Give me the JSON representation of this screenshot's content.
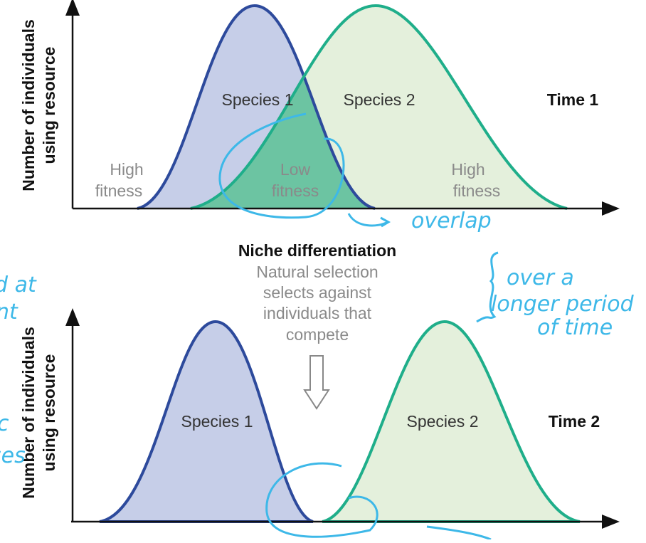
{
  "top_panel": {
    "y_axis_label": [
      "Number of individuals",
      "using resource"
    ],
    "species_1": "Species 1",
    "species_2": "Species 2",
    "time": "Time 1",
    "left_fitness": [
      "High",
      "fitness"
    ],
    "middle_fitness": [
      "Low",
      "fitness"
    ],
    "right_fitness": [
      "High",
      "fitness"
    ]
  },
  "middle": {
    "title": "Niche differentiation",
    "text": [
      "Natural selection",
      "selects against",
      "individuals that",
      "compete"
    ]
  },
  "bottom_panel": {
    "y_axis_label": [
      "Number of individuals",
      "using resource"
    ],
    "species_1": "Species 1",
    "species_2": "Species 2",
    "time": "Time 2"
  },
  "handwriting": {
    "overlap": "overlap",
    "right_note": [
      "over a",
      "longer period",
      "of time"
    ],
    "left_fragments": [
      "d at",
      "nt",
      "c",
      "ses"
    ]
  }
}
